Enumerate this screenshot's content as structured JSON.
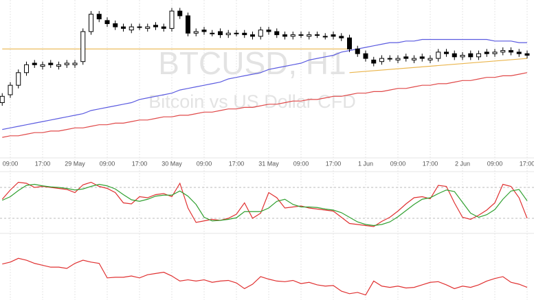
{
  "chart_data": [
    {
      "type": "candlestick",
      "title": "BTCUSD, H1",
      "subtitle": "Bitcoin vs US Dollar CFD",
      "categories": [
        null,
        "09:00",
        null,
        null,
        null,
        "17:00",
        null,
        null,
        null,
        "29 May",
        null,
        null,
        null,
        "09:00",
        null,
        null,
        null,
        "17:00",
        null,
        null,
        null,
        "30 May",
        null,
        null,
        null,
        "09:00",
        null,
        null,
        null,
        "17:00",
        null,
        null,
        null,
        "31 May",
        null,
        null,
        null,
        "09:00",
        null,
        null,
        null,
        "17:00",
        null,
        null,
        null,
        "1 Jun",
        null,
        null,
        null,
        "09:00",
        null,
        null,
        null,
        "17:00",
        null,
        null,
        null,
        "2 Jun",
        null,
        null,
        null,
        "09:00",
        null,
        null,
        null,
        "17:00"
      ],
      "open": [
        35,
        40,
        46,
        54,
        60,
        58,
        60,
        58,
        59,
        59,
        61,
        80,
        91,
        87,
        85,
        83,
        81,
        83,
        82,
        84,
        83,
        82,
        93,
        90,
        79,
        81,
        79,
        80,
        78,
        79,
        79,
        78,
        77,
        81,
        80,
        78,
        77,
        78,
        77,
        78,
        77,
        78,
        77,
        76,
        69,
        66,
        62,
        61,
        63,
        62,
        64,
        62,
        64,
        62,
        63,
        67,
        66,
        64,
        66,
        64,
        67,
        66,
        67,
        68,
        67,
        66
      ],
      "high": [
        41,
        48,
        56,
        61,
        62,
        61,
        62,
        61,
        62,
        62,
        82,
        93,
        93,
        89,
        87,
        85,
        85,
        85,
        85,
        86,
        85,
        95,
        95,
        92,
        82,
        83,
        81,
        82,
        81,
        81,
        81,
        80,
        83,
        83,
        82,
        80,
        80,
        80,
        80,
        80,
        79,
        80,
        79,
        78,
        71,
        68,
        64,
        65,
        65,
        65,
        66,
        65,
        66,
        65,
        69,
        69,
        68,
        67,
        68,
        68,
        69,
        69,
        70,
        70,
        69,
        68
      ],
      "low": [
        33,
        38,
        44,
        52,
        57,
        56,
        57,
        56,
        57,
        57,
        59,
        78,
        86,
        83,
        81,
        80,
        79,
        81,
        80,
        81,
        80,
        80,
        88,
        77,
        77,
        78,
        77,
        76,
        76,
        77,
        76,
        75,
        75,
        78,
        76,
        75,
        75,
        76,
        75,
        76,
        75,
        75,
        74,
        67,
        64,
        61,
        58,
        59,
        61,
        60,
        61,
        60,
        61,
        60,
        61,
        64,
        62,
        62,
        62,
        62,
        64,
        64,
        65,
        65,
        64,
        63
      ],
      "close": [
        39,
        46,
        54,
        59,
        59,
        59,
        59,
        59,
        60,
        60,
        80,
        91,
        88,
        85,
        83,
        82,
        83,
        83,
        83,
        83,
        82,
        93,
        90,
        79,
        80,
        80,
        79,
        78,
        79,
        79,
        78,
        77,
        81,
        80,
        78,
        77,
        78,
        78,
        78,
        78,
        77,
        77,
        76,
        69,
        66,
        63,
        60,
        63,
        63,
        63,
        63,
        63,
        63,
        63,
        67,
        66,
        64,
        65,
        64,
        66,
        66,
        67,
        68,
        67,
        66,
        65
      ],
      "up_color": "#ffffff",
      "down_color": "#000000",
      "ylim": [
        0,
        100
      ],
      "grid": true,
      "series": [
        {
          "color": "#5a5ae0",
          "values": [
            18,
            19,
            20,
            21,
            22,
            23,
            24,
            25,
            26,
            27,
            28,
            30,
            31,
            32,
            33,
            34,
            35,
            37,
            38,
            39,
            40,
            41,
            43,
            44,
            45,
            46,
            47,
            48,
            50,
            51,
            52,
            53,
            54,
            56,
            57,
            58,
            59,
            60,
            62,
            63,
            64,
            65,
            67,
            68,
            69,
            70,
            71,
            72,
            73,
            73,
            74,
            74,
            75,
            75,
            75,
            75,
            75,
            75,
            75,
            75,
            75,
            74,
            74,
            74,
            73,
            73
          ]
        },
        {
          "color": "#e04848",
          "values": [
            13,
            14,
            14,
            15,
            16,
            16,
            17,
            17,
            18,
            19,
            19,
            20,
            21,
            21,
            22,
            22,
            23,
            24,
            24,
            25,
            26,
            26,
            27,
            27,
            28,
            29,
            29,
            30,
            31,
            31,
            32,
            32,
            33,
            34,
            34,
            35,
            36,
            36,
            37,
            37,
            38,
            39,
            39,
            40,
            41,
            41,
            42,
            42,
            43,
            44,
            44,
            45,
            46,
            46,
            47,
            47,
            48,
            49,
            49,
            50,
            51,
            51,
            52,
            52,
            53,
            54
          ]
        },
        {
          "color": "#eab54c",
          "x": [
            0,
            43
          ],
          "values": [
            69,
            69
          ]
        },
        {
          "color": "#eab54c",
          "x": [
            43,
            65
          ],
          "values": [
            54,
            63
          ]
        }
      ]
    },
    {
      "type": "line",
      "ylim": [
        0,
        100
      ],
      "levels": [
        20,
        80
      ],
      "series": [
        {
          "color": "#e03030",
          "values": [
            57,
            75,
            90,
            88,
            80,
            82,
            80,
            78,
            76,
            70,
            85,
            90,
            82,
            78,
            70,
            50,
            48,
            62,
            60,
            66,
            68,
            62,
            88,
            40,
            12,
            15,
            18,
            16,
            20,
            28,
            50,
            20,
            30,
            70,
            60,
            40,
            42,
            44,
            40,
            38,
            36,
            34,
            22,
            10,
            8,
            6,
            4,
            14,
            22,
            34,
            48,
            60,
            62,
            58,
            84,
            82,
            50,
            22,
            18,
            26,
            36,
            50,
            86,
            82,
            60,
            20
          ]
        },
        {
          "color": "#30a030",
          "values": [
            55,
            62,
            74,
            84,
            86,
            83,
            81,
            80,
            78,
            75,
            77,
            82,
            86,
            83,
            77,
            66,
            56,
            53,
            57,
            63,
            65,
            65,
            73,
            63,
            47,
            22,
            15,
            16,
            18,
            21,
            33,
            33,
            33,
            40,
            53,
            57,
            47,
            42,
            42,
            41,
            38,
            36,
            31,
            22,
            13,
            8,
            6,
            8,
            13,
            23,
            35,
            47,
            57,
            60,
            68,
            75,
            72,
            51,
            30,
            22,
            27,
            37,
            57,
            73,
            76,
            54
          ]
        }
      ]
    },
    {
      "type": "line",
      "ylim": [
        0,
        100
      ],
      "series": [
        {
          "color": "#e03030",
          "values": [
            57,
            60,
            66,
            63,
            58,
            55,
            52,
            52,
            50,
            58,
            63,
            60,
            58,
            35,
            36,
            36,
            38,
            35,
            40,
            42,
            44,
            38,
            30,
            32,
            30,
            32,
            28,
            30,
            31,
            27,
            18,
            25,
            37,
            33,
            30,
            29,
            31,
            26,
            28,
            24,
            22,
            23,
            14,
            10,
            12,
            8,
            30,
            22,
            20,
            22,
            19,
            20,
            24,
            28,
            29,
            24,
            18,
            22,
            20,
            24,
            30,
            34,
            37,
            28,
            25,
            20
          ]
        }
      ]
    }
  ]
}
